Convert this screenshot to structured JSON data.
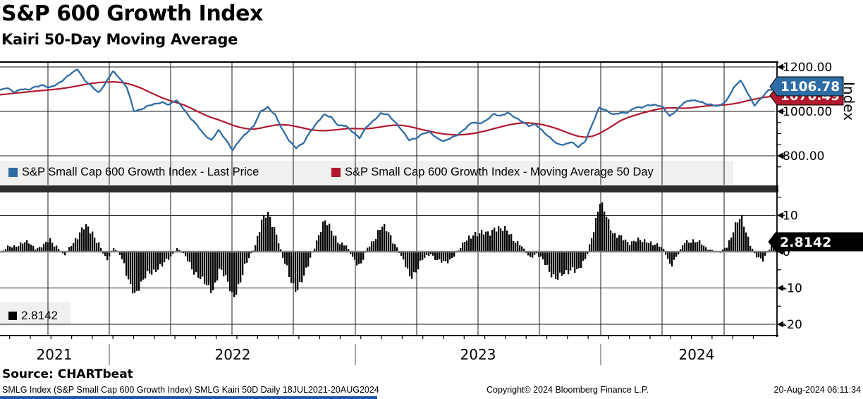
{
  "title": "S&P 600 Growth Index",
  "subtitle": "Kairi 50-Day Moving Average",
  "colors": {
    "blue": "#2E6CA5",
    "red": "#B2182E",
    "black": "#000000",
    "legend_bg": "#F0F0EE",
    "zero_line": "#7F7F7F",
    "divider": "#2D2D2D",
    "grid": "#1A1A1A",
    "taskbar_blue": "#2255B0"
  },
  "price_panel": {
    "axis_label": "Index",
    "ticks": [
      {
        "value": 1200,
        "label": "1200.00"
      },
      {
        "value": 1000,
        "label": "1000.00"
      },
      {
        "value": 800,
        "label": "800.00"
      }
    ],
    "last_price_tag": "1106.78",
    "moving_avg_tag": "1070.49",
    "legend": [
      {
        "swatch": "blue",
        "label": "S&P Small Cap 600 Growth Index - Last Price"
      },
      {
        "swatch": "red",
        "label": "S&P Small Cap 600 Growth Index - Moving Average 50 Day"
      }
    ]
  },
  "kairi_panel": {
    "ticks": [
      {
        "value": 10,
        "label": "10"
      },
      {
        "value": 0,
        "label": "0"
      },
      {
        "value": -10,
        "label": "-10"
      },
      {
        "value": -20,
        "label": "-20"
      }
    ],
    "value_tag": "2.8142",
    "legend": [
      {
        "swatch": "black",
        "label": "2.8142"
      }
    ]
  },
  "xaxis": {
    "years": [
      "2021",
      "2022",
      "2023",
      "2024"
    ]
  },
  "footer": {
    "source": "Source: CHARTbeat",
    "info_left": "SMLG Index (S&P Small Cap 600 Growth Index) SMLG Kairi 50D  Daily 18JUL2021-20AUG2024",
    "info_center": "Copyright© 2024 Bloomberg Finance L.P.",
    "info_right": "20-Aug-2024 06:11:34"
  },
  "chart_data": [
    {
      "type": "line",
      "title": "S&P 600 Growth Index",
      "x_note": "111 evenly spaced samples from 18JUL2021 to 20AUG2024",
      "x_range": [
        "18JUL2021",
        "20AUG2024"
      ],
      "ylabel": "Index",
      "ylim": [
        660,
        1255
      ],
      "yticks": [
        800,
        1000,
        1200
      ],
      "grid": true,
      "legend_position": "bottom strip inside plot",
      "series": [
        {
          "name": "S&P Small Cap 600 Growth Index - Last Price",
          "color": "#2E6CA5",
          "last_value": 1106.78,
          "values": [
            1095,
            1105,
            1088,
            1100,
            1096,
            1112,
            1118,
            1106,
            1122,
            1142,
            1168,
            1192,
            1140,
            1112,
            1085,
            1128,
            1180,
            1150,
            1108,
            1000,
            1010,
            1025,
            1032,
            1042,
            1030,
            1050,
            1015,
            970,
            935,
            895,
            870,
            915,
            875,
            825,
            870,
            905,
            935,
            1000,
            1020,
            985,
            920,
            870,
            835,
            855,
            910,
            950,
            985,
            975,
            935,
            935,
            910,
            880,
            930,
            960,
            990,
            985,
            955,
            915,
            870,
            880,
            900,
            905,
            880,
            865,
            880,
            898,
            923,
            950,
            947,
            959,
            987,
            981,
            994,
            972,
            957,
            934,
            940,
            912,
            881,
            853,
            851,
            862,
            839,
            866,
            941,
            1017,
            1005,
            985,
            992,
            996,
            1016,
            1017,
            1030,
            1028,
            1019,
            980,
            1005,
            1039,
            1052,
            1046,
            1034,
            1031,
            1023,
            1045,
            1105,
            1140,
            1085,
            1028,
            1060,
            1095,
            1106.78
          ]
        },
        {
          "name": "S&P Small Cap 600 Growth Index - Moving Average 50 Day",
          "color": "#B2182E",
          "last_value": 1070.49,
          "values": [
            1075,
            1078,
            1082,
            1085,
            1088,
            1091,
            1094,
            1097,
            1100,
            1104,
            1109,
            1115,
            1121,
            1126,
            1130,
            1132,
            1133,
            1131,
            1126,
            1117,
            1105,
            1090,
            1075,
            1061,
            1050,
            1040,
            1030,
            1016,
            1000,
            985,
            972,
            962,
            950,
            938,
            928,
            922,
            920,
            925,
            932,
            938,
            940,
            938,
            932,
            925,
            918,
            914,
            913,
            915,
            918,
            922,
            923,
            922,
            922,
            925,
            930,
            935,
            938,
            937,
            932,
            925,
            917,
            910,
            903,
            898,
            895,
            894,
            896,
            900,
            906,
            913,
            922,
            930,
            938,
            944,
            948,
            948,
            945,
            940,
            932,
            922,
            910,
            898,
            888,
            884,
            888,
            900,
            918,
            938,
            958,
            972,
            982,
            992,
            1000,
            1008,
            1014,
            1016,
            1015,
            1014,
            1016,
            1020,
            1024,
            1026,
            1028,
            1030,
            1034,
            1040,
            1048,
            1055,
            1061,
            1066,
            1070.49
          ]
        }
      ]
    },
    {
      "type": "bar",
      "name": "Kairi 50-Day Moving Average (%)",
      "x_note": "111 evenly spaced samples from 18JUL2021 to 20AUG2024",
      "ylim": [
        -23,
        15
      ],
      "yticks": [
        10,
        0,
        -10,
        -20
      ],
      "bar_color": "#000000",
      "last_value": 2.8142,
      "values": [
        -0.5,
        1.2,
        1.8,
        2.2,
        2.4,
        1.0,
        1.5,
        3.2,
        1.5,
        -1.5,
        2.0,
        5.0,
        6.5,
        5.5,
        2.0,
        -3.0,
        1.5,
        -1.0,
        -8.0,
        -11.0,
        -9.0,
        -6.0,
        -4.5,
        -4.0,
        -1.5,
        1.0,
        -1.0,
        -4.0,
        -6.5,
        -9.5,
        -10.5,
        -5.0,
        -8.0,
        -12.0,
        -8.5,
        -2.5,
        1.5,
        8.0,
        10.5,
        6.0,
        -2.0,
        -7.0,
        -10.5,
        -7.5,
        -1.0,
        4.0,
        8.0,
        6.5,
        2.0,
        1.5,
        -1.5,
        -4.5,
        1.0,
        4.0,
        6.5,
        5.5,
        2.0,
        -2.5,
        -6.5,
        -5.0,
        -2.0,
        -0.5,
        -2.5,
        -3.5,
        -1.5,
        0.5,
        3.0,
        5.5,
        4.5,
        5.0,
        7.0,
        5.5,
        6.0,
        3.0,
        1.0,
        -1.5,
        -0.5,
        -3.0,
        -5.5,
        -7.5,
        -6.5,
        -4.0,
        -5.5,
        -2.0,
        6.0,
        13.0,
        9.5,
        5.0,
        3.5,
        2.5,
        3.5,
        2.5,
        3.0,
        2.0,
        0.5,
        -3.5,
        -1.0,
        2.5,
        3.5,
        2.5,
        1.0,
        0.5,
        -0.5,
        1.5,
        7.0,
        9.0,
        4.0,
        -1.0,
        -3.0,
        1.0,
        2.8142
      ]
    }
  ]
}
